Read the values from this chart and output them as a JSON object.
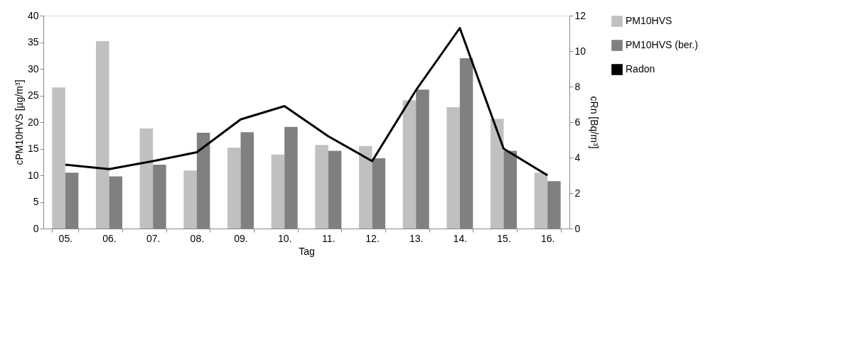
{
  "chart_data": {
    "type": "bar",
    "xlabel": "Tag",
    "ylabel": "cPM10HVS [µg/m³]",
    "y2label": "cRn [Bq/m³]",
    "categories": [
      "05.",
      "06.",
      "07.",
      "08.",
      "09.",
      "10.",
      "11.",
      "12.",
      "13.",
      "14.",
      "15.",
      "16."
    ],
    "series": [
      {
        "name": "PM10HVS",
        "color": "#c0c0c0",
        "values": [
          26.5,
          35.2,
          18.8,
          10.9,
          15.2,
          13.9,
          15.7,
          15.5,
          24.1,
          22.8,
          20.6,
          10.5
        ]
      },
      {
        "name": "PM10HVS (ber.)",
        "color": "#808080",
        "values": [
          10.5,
          9.8,
          12.0,
          18.0,
          18.1,
          19.1,
          14.6,
          13.2,
          26.1,
          32.0,
          14.6,
          8.9
        ]
      },
      {
        "name": "Radon",
        "type": "line",
        "axis": "y2",
        "color": "#000000",
        "values": [
          3.6,
          3.35,
          3.8,
          4.3,
          6.15,
          6.9,
          5.2,
          3.8,
          7.8,
          11.3,
          4.5,
          3.0
        ]
      }
    ],
    "ylim": [
      0,
      40
    ],
    "yticks": [
      0,
      5,
      10,
      15,
      20,
      25,
      30,
      35,
      40
    ],
    "y2lim": [
      0,
      12
    ],
    "y2ticks": [
      0,
      2,
      4,
      6,
      8,
      10,
      12
    ],
    "grid": false,
    "legend": "right",
    "marker": "none",
    "line_style": "solid"
  }
}
